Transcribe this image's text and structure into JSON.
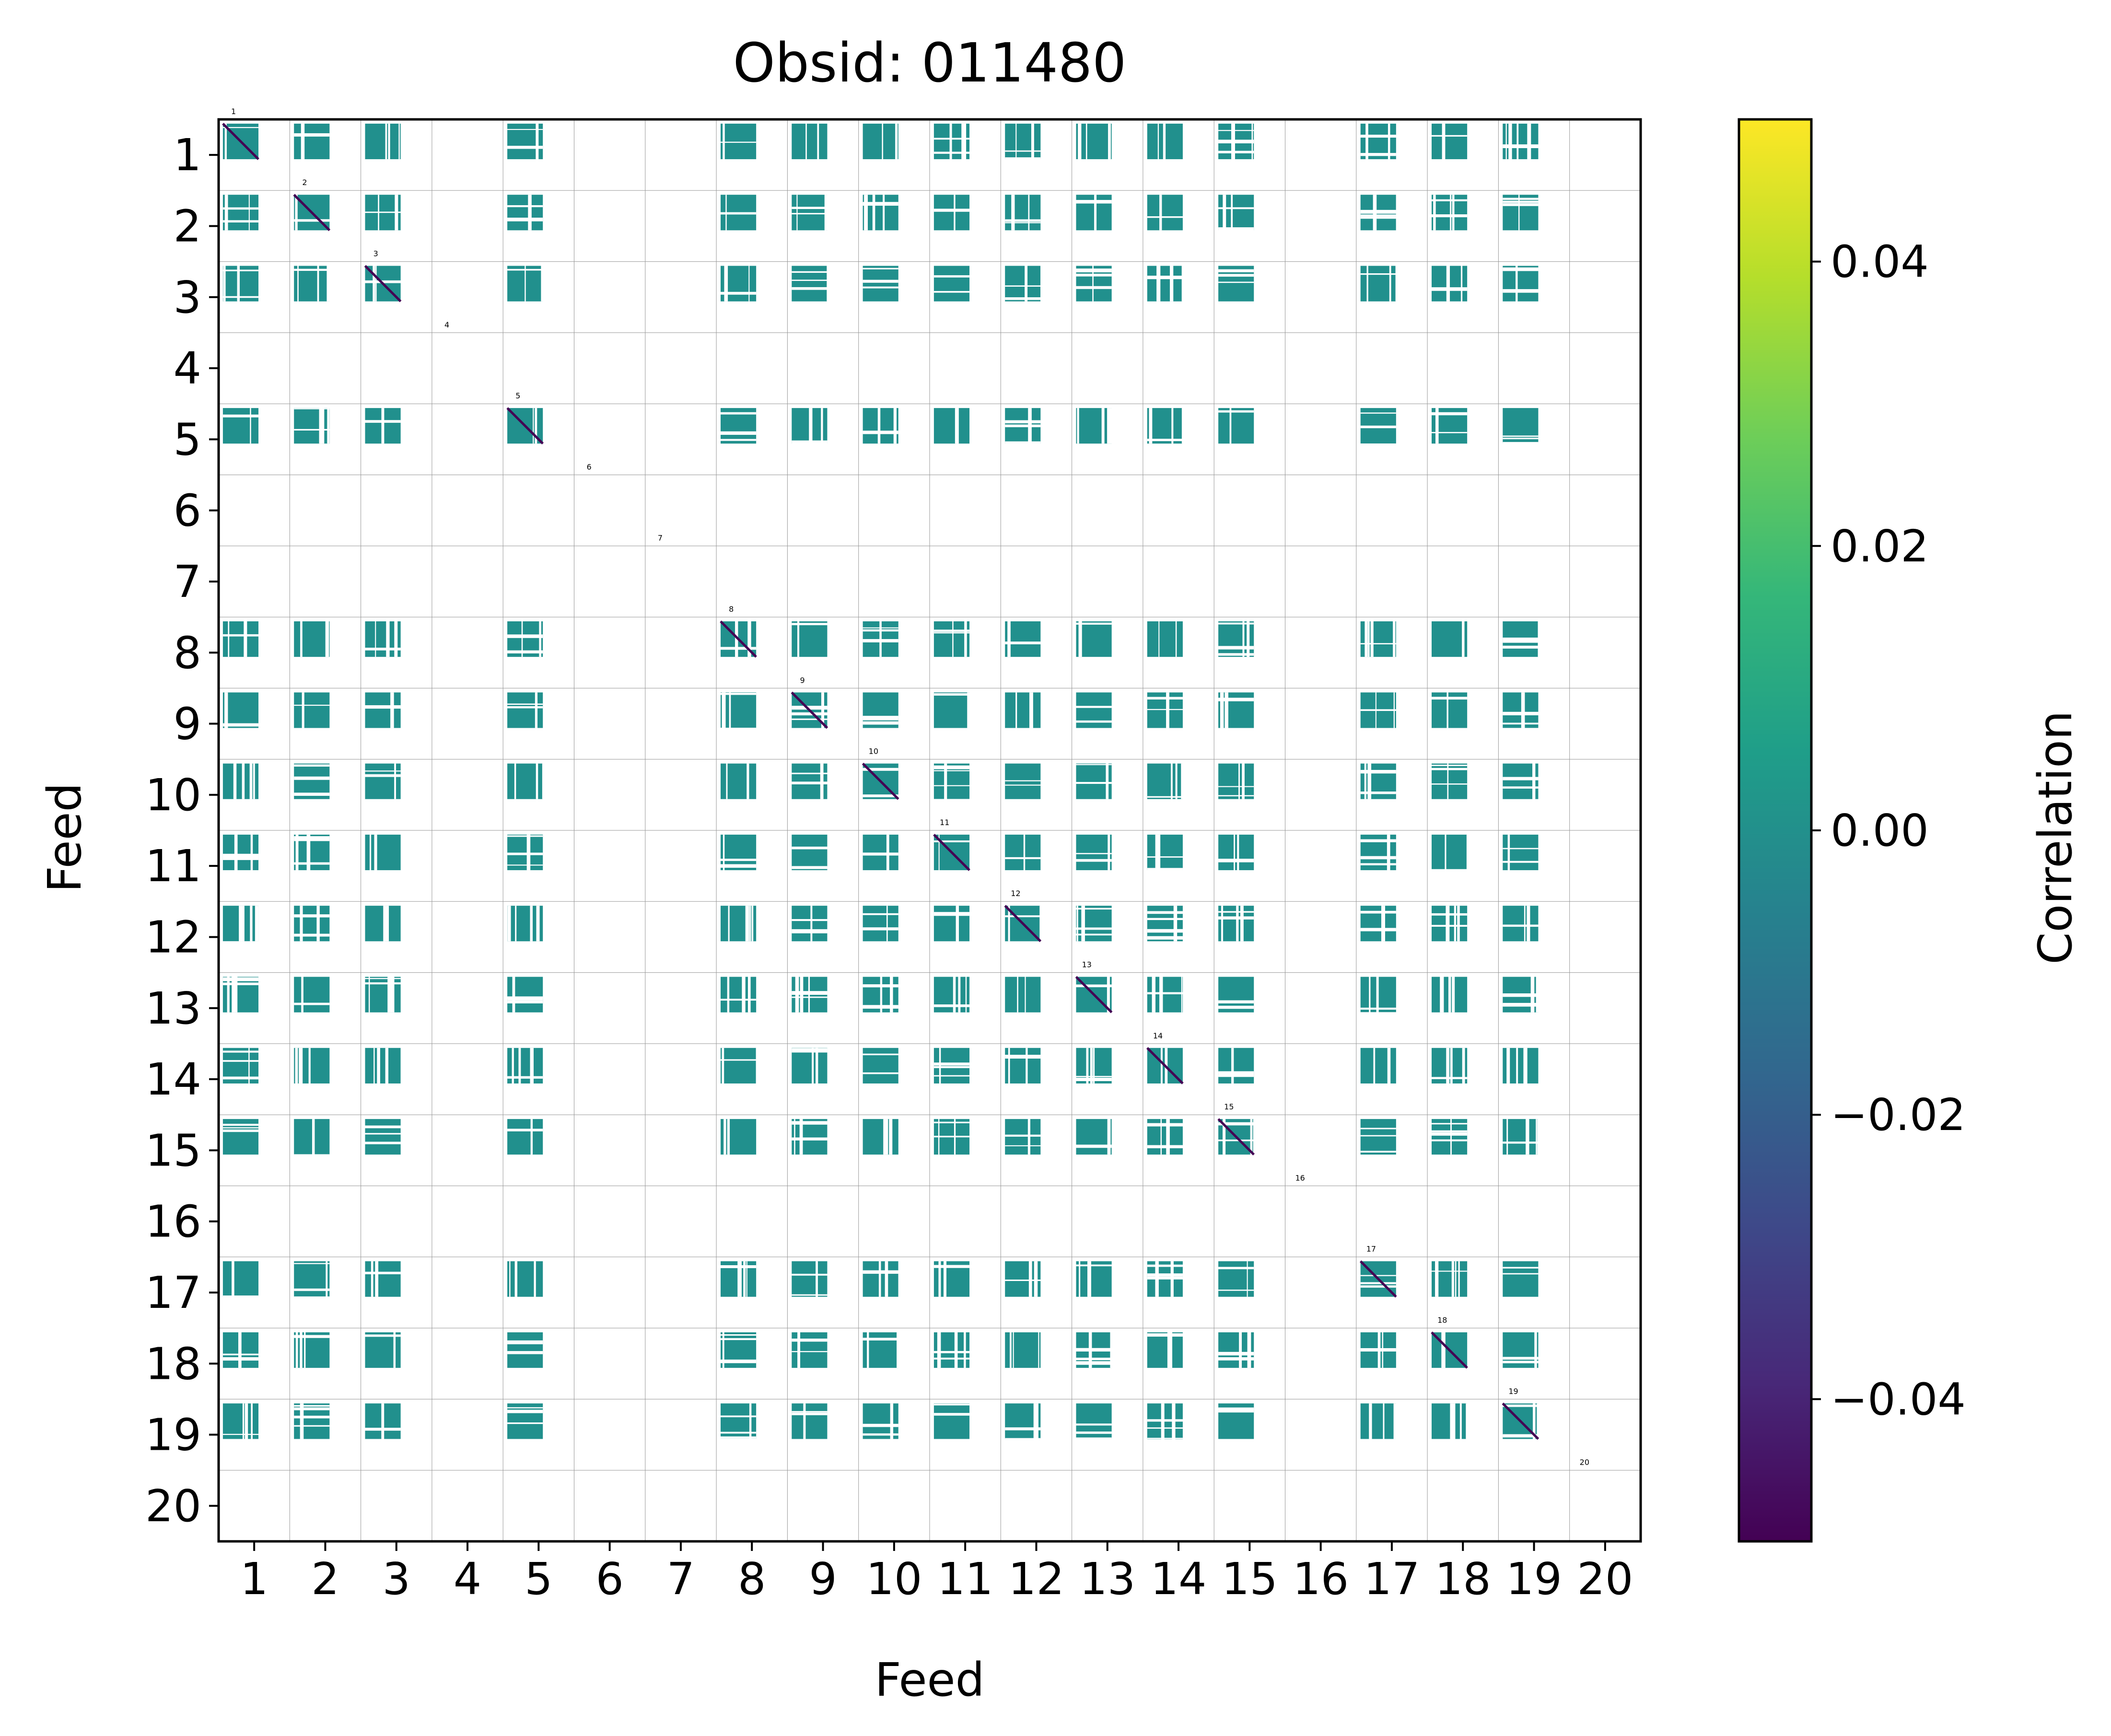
{
  "chart_data": {
    "type": "heatmap",
    "title": "Obsid: 011480",
    "xlabel": "Feed",
    "ylabel": "Feed",
    "feeds": [
      1,
      2,
      3,
      4,
      5,
      6,
      7,
      8,
      9,
      10,
      11,
      12,
      13,
      14,
      15,
      16,
      17,
      18,
      19,
      20
    ],
    "x_tick_labels": [
      "1",
      "2",
      "3",
      "4",
      "5",
      "6",
      "7",
      "8",
      "9",
      "10",
      "11",
      "12",
      "13",
      "14",
      "15",
      "16",
      "17",
      "18",
      "19",
      "20"
    ],
    "y_tick_labels": [
      "1",
      "2",
      "3",
      "4",
      "5",
      "6",
      "7",
      "8",
      "9",
      "10",
      "11",
      "12",
      "13",
      "14",
      "15",
      "16",
      "17",
      "18",
      "19",
      "20"
    ],
    "diagonal_labels": [
      "1",
      "2",
      "3",
      "4",
      "5",
      "6",
      "7",
      "8",
      "9",
      "10",
      "11",
      "12",
      "13",
      "14",
      "15",
      "16",
      "17",
      "18",
      "19",
      "20"
    ],
    "active_feeds": [
      1,
      2,
      3,
      5,
      8,
      9,
      10,
      11,
      12,
      13,
      14,
      15,
      17,
      18,
      19
    ],
    "inactive_feeds": [
      4,
      6,
      7,
      16,
      20
    ],
    "sub_blocks_per_feed": 4,
    "background_value": 0.0,
    "diagonal_value": -0.05,
    "colorbar": {
      "label": "Correlation",
      "vmin": -0.05,
      "vmax": 0.05,
      "ticks": [
        0.04,
        0.02,
        0.0,
        -0.02,
        -0.04
      ],
      "tick_labels": [
        "0.04",
        "0.02",
        "0.00",
        "−0.02",
        "−0.04"
      ],
      "colormap": "viridis",
      "colors": [
        "#440154",
        "#482878",
        "#3e4989",
        "#31688e",
        "#26828e",
        "#1f9e89",
        "#35b779",
        "#6ece58",
        "#b5de2b",
        "#fde725"
      ]
    },
    "cell_color": "#21908d",
    "grid": true
  }
}
